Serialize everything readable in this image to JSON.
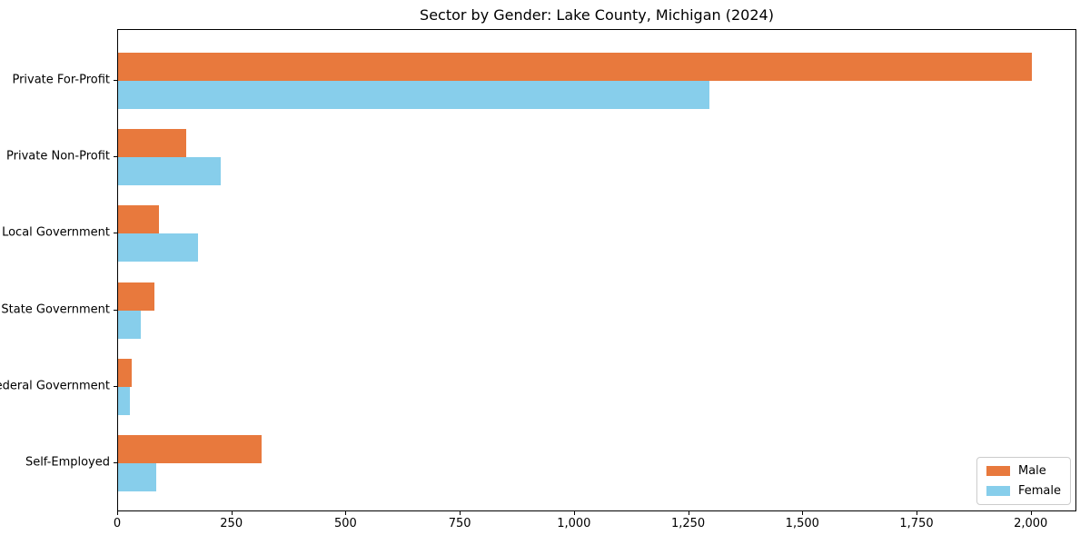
{
  "title": "Sector by Gender: Lake County, Michigan (2024)",
  "colors": {
    "male": "#e8793d",
    "female": "#87ceeb",
    "axis": "#000000",
    "legend_border": "#cccccc",
    "background": "#ffffff"
  },
  "chart_data": {
    "type": "bar",
    "orientation": "horizontal",
    "title": "Sector by Gender: Lake County, Michigan (2024)",
    "categories": [
      "Private For-Profit",
      "Private Non-Profit",
      "Local Government",
      "State Government",
      "Federal Government",
      "Self-Employed"
    ],
    "series": [
      {
        "name": "Male",
        "color": "#e8793d",
        "values": [
          2000,
          150,
          90,
          80,
          30,
          315
        ]
      },
      {
        "name": "Female",
        "color": "#87ceeb",
        "values": [
          1295,
          225,
          175,
          50,
          25,
          83
        ]
      }
    ],
    "xlabel": "",
    "ylabel": "",
    "xlim": [
      0,
      2100
    ],
    "xticks": [
      0,
      250,
      500,
      750,
      1000,
      1250,
      1500,
      1750,
      2000
    ],
    "xtick_labels": [
      "0",
      "250",
      "500",
      "750",
      "1,000",
      "1,250",
      "1,500",
      "1,750",
      "2,000"
    ],
    "grid": false,
    "legend_position": "lower right"
  },
  "legend": {
    "items": [
      {
        "label": "Male",
        "color": "#e8793d"
      },
      {
        "label": "Female",
        "color": "#87ceeb"
      }
    ]
  }
}
